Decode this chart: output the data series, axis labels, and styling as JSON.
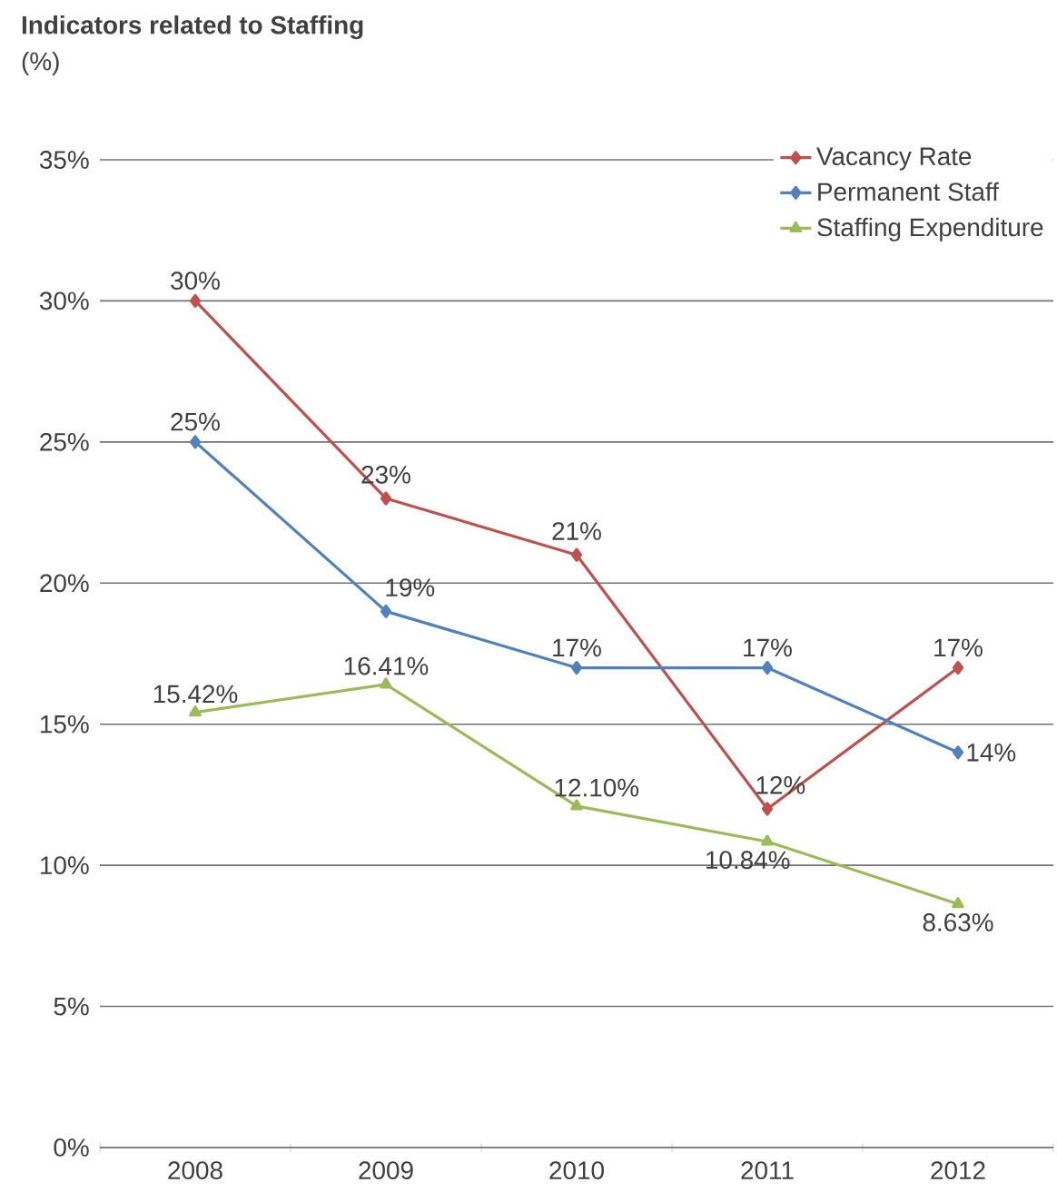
{
  "chart_data": {
    "type": "line",
    "title": "Indicators related to Staffing",
    "ylabel": "(%)",
    "categories": [
      "2008",
      "2009",
      "2010",
      "2011",
      "2012"
    ],
    "series": [
      {
        "name": "Vacancy Rate",
        "color": "#c0504d",
        "marker": "diamond",
        "values": [
          30,
          23,
          21,
          12,
          17
        ],
        "value_labels": [
          "30%",
          "23%",
          "21%",
          "12%",
          "17%"
        ]
      },
      {
        "name": "Permanent Staff",
        "color": "#4f81bd",
        "marker": "diamond",
        "values": [
          25,
          19,
          17,
          17,
          14
        ],
        "value_labels": [
          "25%",
          "19%",
          "17%",
          "17%",
          "14%"
        ]
      },
      {
        "name": "Staffing Expenditure",
        "color": "#9bbb59",
        "marker": "triangle",
        "values": [
          15.42,
          16.41,
          12.1,
          10.84,
          8.63
        ],
        "value_labels": [
          "15.42%",
          "16.41%",
          "12.10%",
          "10.84%",
          "8.63%"
        ]
      }
    ],
    "ylim": [
      0,
      35
    ],
    "yticks": [
      {
        "value": 0,
        "label": "0%"
      },
      {
        "value": 5,
        "label": "5%"
      },
      {
        "value": 10,
        "label": "10%"
      },
      {
        "value": 15,
        "label": "15%"
      },
      {
        "value": 20,
        "label": "20%"
      },
      {
        "value": 25,
        "label": "25%"
      },
      {
        "value": 30,
        "label": "30%"
      },
      {
        "value": 35,
        "label": "35%"
      }
    ],
    "grid": "y",
    "legend": "top right",
    "line_style": "solid"
  }
}
